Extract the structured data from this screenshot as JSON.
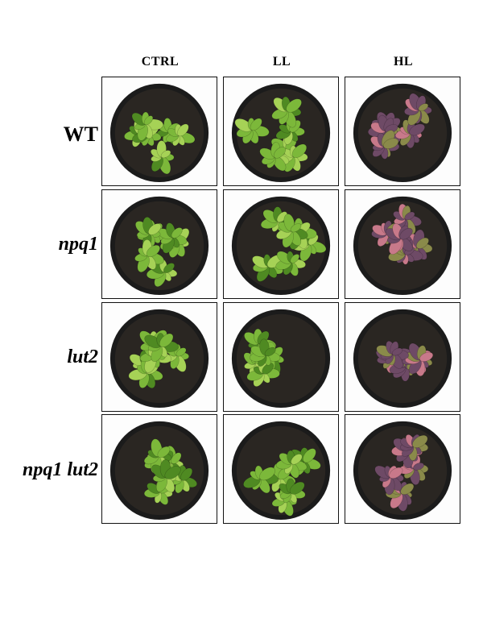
{
  "figure": {
    "columns": [
      "CTRL",
      "LL",
      "HL"
    ],
    "rows": [
      {
        "label": "WT",
        "italic": false
      },
      {
        "label": "npq1",
        "italic": true
      },
      {
        "label": "lut2",
        "italic": true
      },
      {
        "label": "npq1 lut2",
        "italic": true
      }
    ]
  },
  "colors": {
    "pot": "#1b1b1b",
    "soil": "#2a2622",
    "leaf_green": "#7cb83a",
    "leaf_green_light": "#a6d256",
    "leaf_green_dark": "#4f8a22",
    "leaf_purple": "#6e4a66",
    "leaf_pink": "#c8798a",
    "leaf_olive": "#8a8a4a"
  }
}
